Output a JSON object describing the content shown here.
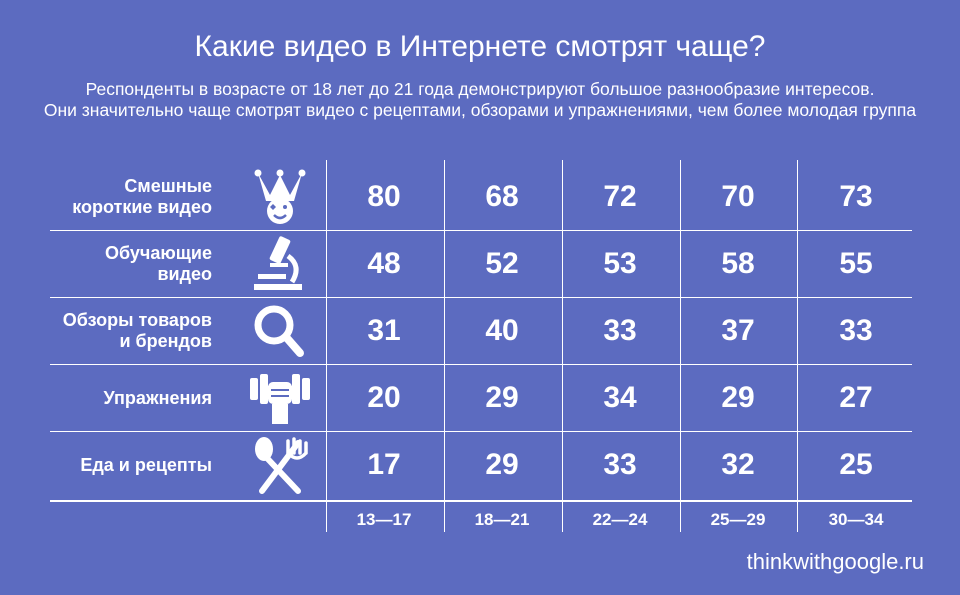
{
  "chart_data": {
    "type": "table",
    "title": "Какие видео в Интернете смотрят чаще?",
    "subtitle_lines": [
      "Респонденты в возрасте от 18 лет до 21 года демонстрируют большое разнообразие интересов.",
      "Они значительно чаще смотрят видео с рецептами, обзорами и упражнениями, чем более молодая группа"
    ],
    "columns": [
      "13—17",
      "18—21",
      "22—24",
      "25—29",
      "30—34"
    ],
    "rows": [
      {
        "label_lines": [
          "Смешные",
          "короткие видео"
        ],
        "icon": "jester-hat-icon",
        "values": [
          80,
          68,
          72,
          70,
          73
        ]
      },
      {
        "label_lines": [
          "Обучающие",
          "видео"
        ],
        "icon": "microscope-icon",
        "values": [
          48,
          52,
          53,
          58,
          55
        ]
      },
      {
        "label_lines": [
          "Обзоры товаров",
          "и брендов"
        ],
        "icon": "magnifier-icon",
        "values": [
          31,
          40,
          33,
          37,
          33
        ]
      },
      {
        "label_lines": [
          "Упражнения"
        ],
        "icon": "dumbbell-fist-icon",
        "values": [
          20,
          29,
          34,
          29,
          27
        ]
      },
      {
        "label_lines": [
          "Еда и рецепты"
        ],
        "icon": "spoon-fork-icon",
        "values": [
          17,
          29,
          33,
          32,
          25
        ]
      }
    ],
    "source": "thinkwithgoogle.ru"
  },
  "colors": {
    "background": "#5c6bc0",
    "foreground": "#ffffff"
  }
}
